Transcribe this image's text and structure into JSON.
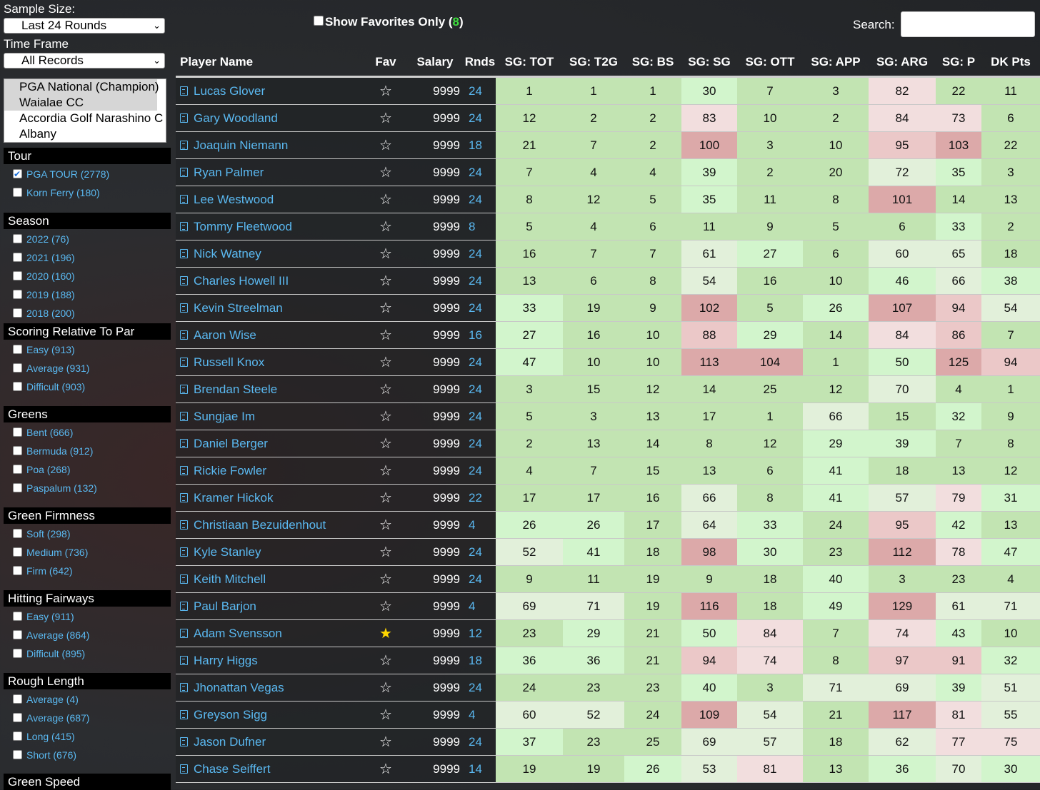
{
  "sidebar": {
    "sample_size_label": "Sample Size:",
    "sample_size_value": "Last 24 Rounds",
    "time_frame_label": "Time Frame",
    "time_frame_value": "All Records",
    "courses": [
      {
        "name": "PGA National (Champion)",
        "selected": true
      },
      {
        "name": "Waialae CC",
        "selected": true
      },
      {
        "name": "Accordia Golf Narashino C",
        "selected": false
      },
      {
        "name": "Albany",
        "selected": false
      }
    ],
    "filters": [
      {
        "title": "Tour",
        "items": [
          {
            "label": "PGA TOUR (2778)",
            "checked": true
          },
          {
            "label": "Korn Ferry (180)",
            "checked": false
          }
        ]
      },
      {
        "title": "Season",
        "items": [
          {
            "label": "2022 (76)",
            "checked": false
          },
          {
            "label": "2021 (196)",
            "checked": false
          },
          {
            "label": "2020 (160)",
            "checked": false
          },
          {
            "label": "2019 (188)",
            "checked": false
          },
          {
            "label": "2018 (200)",
            "checked": false
          }
        ]
      },
      {
        "title": "Scoring Relative To Par",
        "items": [
          {
            "label": "Easy (913)",
            "checked": false
          },
          {
            "label": "Average (931)",
            "checked": false
          },
          {
            "label": "Difficult (903)",
            "checked": false
          }
        ]
      },
      {
        "title": "Greens",
        "items": [
          {
            "label": "Bent (666)",
            "checked": false
          },
          {
            "label": "Bermuda (912)",
            "checked": false
          },
          {
            "label": "Poa (268)",
            "checked": false
          },
          {
            "label": "Paspalum (132)",
            "checked": false
          }
        ]
      },
      {
        "title": "Green Firmness",
        "items": [
          {
            "label": "Soft (298)",
            "checked": false
          },
          {
            "label": "Medium (736)",
            "checked": false
          },
          {
            "label": "Firm (642)",
            "checked": false
          }
        ]
      },
      {
        "title": "Hitting Fairways",
        "items": [
          {
            "label": "Easy (911)",
            "checked": false
          },
          {
            "label": "Average (864)",
            "checked": false
          },
          {
            "label": "Difficult (895)",
            "checked": false
          }
        ]
      },
      {
        "title": "Rough Length",
        "items": [
          {
            "label": "Average (4)",
            "checked": false
          },
          {
            "label": "Average (687)",
            "checked": false
          },
          {
            "label": "Long (415)",
            "checked": false
          },
          {
            "label": "Short (676)",
            "checked": false
          }
        ]
      },
      {
        "title": "Green Speed",
        "items": []
      }
    ]
  },
  "topbar": {
    "favorites_label": "Show Favorites Only",
    "favorites_count": "8",
    "search_label": "Search:",
    "search_value": ""
  },
  "table": {
    "columns": [
      "Player Name",
      "Fav",
      "Salary",
      "Rnds",
      "SG: TOT",
      "SG: T2G",
      "SG: BS",
      "SG: SG",
      "SG: OTT",
      "SG: APP",
      "SG: ARG",
      "SG: P",
      "DK Pts"
    ],
    "rows": [
      {
        "name": "Lucas Glover",
        "fav": false,
        "salary": "9999",
        "rnds": "24",
        "stats": [
          1,
          1,
          1,
          30,
          7,
          3,
          82,
          22,
          11
        ]
      },
      {
        "name": "Gary Woodland",
        "fav": false,
        "salary": "9999",
        "rnds": "24",
        "stats": [
          12,
          2,
          2,
          83,
          10,
          2,
          84,
          73,
          6
        ]
      },
      {
        "name": "Joaquin Niemann",
        "fav": false,
        "salary": "9999",
        "rnds": "18",
        "stats": [
          21,
          7,
          2,
          100,
          3,
          10,
          95,
          103,
          22
        ]
      },
      {
        "name": "Ryan Palmer",
        "fav": false,
        "salary": "9999",
        "rnds": "24",
        "stats": [
          7,
          4,
          4,
          39,
          2,
          20,
          72,
          35,
          3
        ]
      },
      {
        "name": "Lee Westwood",
        "fav": false,
        "salary": "9999",
        "rnds": "24",
        "stats": [
          8,
          12,
          5,
          35,
          11,
          8,
          101,
          14,
          13
        ]
      },
      {
        "name": "Tommy Fleetwood",
        "fav": false,
        "salary": "9999",
        "rnds": "8",
        "stats": [
          5,
          4,
          6,
          11,
          9,
          5,
          6,
          33,
          2
        ]
      },
      {
        "name": "Nick Watney",
        "fav": false,
        "salary": "9999",
        "rnds": "24",
        "stats": [
          16,
          7,
          7,
          61,
          27,
          6,
          60,
          65,
          18
        ]
      },
      {
        "name": "Charles Howell III",
        "fav": false,
        "salary": "9999",
        "rnds": "24",
        "stats": [
          13,
          6,
          8,
          54,
          16,
          10,
          46,
          66,
          38
        ]
      },
      {
        "name": "Kevin Streelman",
        "fav": false,
        "salary": "9999",
        "rnds": "24",
        "stats": [
          33,
          19,
          9,
          102,
          5,
          26,
          107,
          94,
          54
        ]
      },
      {
        "name": "Aaron Wise",
        "fav": false,
        "salary": "9999",
        "rnds": "16",
        "stats": [
          27,
          16,
          10,
          88,
          29,
          14,
          84,
          86,
          7
        ]
      },
      {
        "name": "Russell Knox",
        "fav": false,
        "salary": "9999",
        "rnds": "24",
        "stats": [
          47,
          10,
          10,
          113,
          104,
          1,
          50,
          125,
          94
        ]
      },
      {
        "name": "Brendan Steele",
        "fav": false,
        "salary": "9999",
        "rnds": "24",
        "stats": [
          3,
          15,
          12,
          14,
          25,
          12,
          70,
          4,
          1
        ]
      },
      {
        "name": "Sungjae Im",
        "fav": false,
        "salary": "9999",
        "rnds": "24",
        "stats": [
          5,
          3,
          13,
          17,
          1,
          66,
          15,
          32,
          9
        ]
      },
      {
        "name": "Daniel Berger",
        "fav": false,
        "salary": "9999",
        "rnds": "24",
        "stats": [
          2,
          13,
          14,
          8,
          12,
          29,
          39,
          7,
          8
        ]
      },
      {
        "name": "Rickie Fowler",
        "fav": false,
        "salary": "9999",
        "rnds": "24",
        "stats": [
          4,
          7,
          15,
          13,
          6,
          41,
          18,
          13,
          12
        ]
      },
      {
        "name": "Kramer Hickok",
        "fav": false,
        "salary": "9999",
        "rnds": "22",
        "stats": [
          17,
          17,
          16,
          66,
          8,
          41,
          57,
          79,
          31
        ]
      },
      {
        "name": "Christiaan Bezuidenhout",
        "fav": false,
        "salary": "9999",
        "rnds": "4",
        "stats": [
          26,
          26,
          17,
          64,
          33,
          24,
          95,
          42,
          13
        ]
      },
      {
        "name": "Kyle Stanley",
        "fav": false,
        "salary": "9999",
        "rnds": "24",
        "stats": [
          52,
          41,
          18,
          98,
          30,
          23,
          112,
          78,
          47
        ]
      },
      {
        "name": "Keith Mitchell",
        "fav": false,
        "salary": "9999",
        "rnds": "24",
        "stats": [
          9,
          11,
          19,
          9,
          18,
          40,
          3,
          23,
          4
        ]
      },
      {
        "name": "Paul Barjon",
        "fav": false,
        "salary": "9999",
        "rnds": "4",
        "stats": [
          69,
          71,
          19,
          116,
          18,
          49,
          129,
          61,
          71
        ]
      },
      {
        "name": "Adam Svensson",
        "fav": true,
        "salary": "9999",
        "rnds": "12",
        "stats": [
          23,
          29,
          21,
          50,
          84,
          7,
          74,
          43,
          10
        ]
      },
      {
        "name": "Harry Higgs",
        "fav": false,
        "salary": "9999",
        "rnds": "18",
        "stats": [
          36,
          36,
          21,
          94,
          74,
          8,
          97,
          91,
          32
        ]
      },
      {
        "name": "Jhonattan Vegas",
        "fav": false,
        "salary": "9999",
        "rnds": "24",
        "stats": [
          24,
          23,
          23,
          40,
          3,
          71,
          69,
          39,
          51
        ]
      },
      {
        "name": "Greyson Sigg",
        "fav": false,
        "salary": "9999",
        "rnds": "4",
        "stats": [
          60,
          52,
          24,
          109,
          54,
          21,
          117,
          81,
          55
        ]
      },
      {
        "name": "Jason Dufner",
        "fav": false,
        "salary": "9999",
        "rnds": "24",
        "stats": [
          37,
          23,
          25,
          69,
          57,
          18,
          62,
          77,
          75
        ]
      },
      {
        "name": "Chase Seiffert",
        "fav": false,
        "salary": "9999",
        "rnds": "14",
        "stats": [
          19,
          19,
          26,
          53,
          81,
          13,
          36,
          70,
          30
        ]
      }
    ]
  }
}
